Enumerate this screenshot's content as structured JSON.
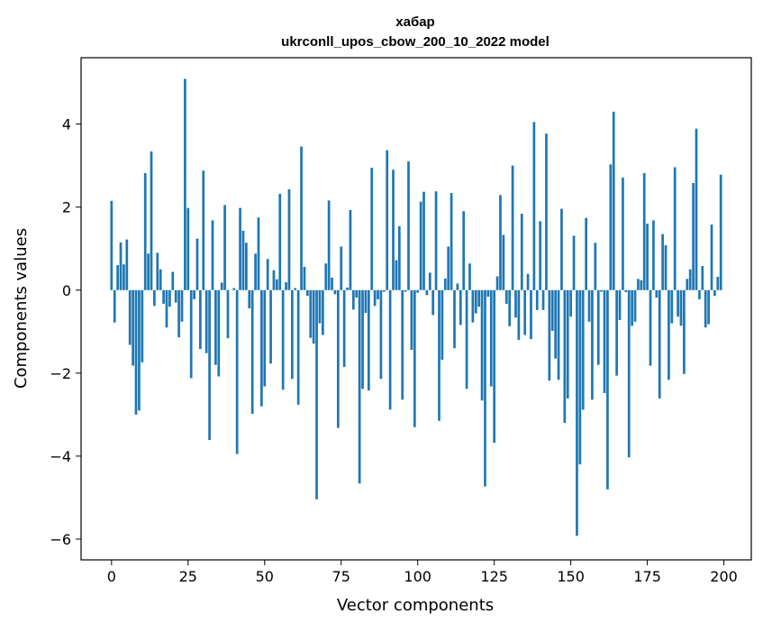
{
  "chart_data": {
    "type": "bar",
    "title": "хабар",
    "subtitle": "ukrconll_upos_cbow_200_10_2022 model",
    "xlabel": "Vector components",
    "ylabel": "Components values",
    "xlim": [
      -9.95,
      208.95
    ],
    "ylim": [
      -6.5,
      5.6
    ],
    "xticks": [
      0,
      25,
      50,
      75,
      100,
      125,
      150,
      175,
      200
    ],
    "yticks": [
      -6,
      -4,
      -2,
      0,
      2,
      4
    ],
    "xtick_labels": [
      "0",
      "25",
      "50",
      "75",
      "100",
      "125",
      "150",
      "175",
      "200"
    ],
    "ytick_labels": [
      "−6",
      "−4",
      "−2",
      "0",
      "2",
      "4"
    ],
    "bar_color": "#1f77b4",
    "grid": false,
    "legend": "none",
    "values": [
      2.15,
      -0.78,
      0.6,
      1.15,
      0.62,
      1.22,
      -1.32,
      -1.82,
      -3.0,
      -2.9,
      -1.74,
      2.82,
      0.88,
      3.34,
      -0.38,
      0.9,
      0.5,
      -0.33,
      -0.9,
      -0.4,
      0.44,
      -0.3,
      -1.14,
      -0.76,
      5.09,
      1.98,
      -2.12,
      -0.22,
      1.24,
      -1.42,
      2.88,
      -1.52,
      -3.61,
      1.68,
      -1.8,
      -2.08,
      0.18,
      2.05,
      -1.16,
      0.0,
      0.05,
      -3.95,
      1.98,
      1.43,
      1.14,
      -0.44,
      -2.98,
      0.88,
      1.75,
      -2.8,
      -2.32,
      0.75,
      -1.77,
      0.48,
      0.26,
      2.32,
      -2.4,
      0.19,
      2.43,
      -2.14,
      0.05,
      -2.76,
      3.46,
      0.56,
      -0.14,
      -1.15,
      -1.29,
      -5.04,
      -0.8,
      -1.08,
      0.64,
      2.16,
      0.3,
      -0.1,
      -3.32,
      1.05,
      -1.85,
      0.06,
      1.93,
      -0.47,
      -0.18,
      -4.66,
      -2.38,
      -0.55,
      -2.42,
      2.95,
      -0.38,
      -0.22,
      -2.14,
      -0.04,
      3.37,
      -2.88,
      2.9,
      0.72,
      1.54,
      -2.64,
      -0.04,
      3.1,
      -1.44,
      -3.3,
      -0.06,
      2.13,
      2.37,
      -0.12,
      0.42,
      -0.6,
      2.38,
      -3.15,
      -1.68,
      0.28,
      1.05,
      2.34,
      -1.4,
      0.16,
      -0.84,
      1.9,
      -2.38,
      0.64,
      -0.78,
      -0.56,
      -0.4,
      -2.66,
      -4.73,
      -0.16,
      -2.32,
      -3.68,
      0.33,
      2.29,
      1.33,
      -0.33,
      -0.87,
      3.0,
      -0.66,
      -1.2,
      1.84,
      -1.08,
      0.39,
      -1.18,
      4.05,
      -0.48,
      1.66,
      -0.48,
      3.77,
      -2.18,
      -0.98,
      -1.65,
      -2.16,
      1.96,
      -3.2,
      -2.61,
      -0.64,
      1.31,
      -5.92,
      -4.2,
      -2.88,
      1.74,
      -0.76,
      -2.64,
      1.14,
      -1.8,
      -0.04,
      -2.48,
      -4.8,
      3.03,
      4.3,
      -2.06,
      -0.72,
      2.71,
      -0.05,
      -4.03,
      -0.86,
      -0.76,
      0.27,
      0.24,
      2.82,
      1.6,
      -1.82,
      1.68,
      -0.18,
      -2.61,
      1.35,
      1.08,
      -2.16,
      -0.8,
      2.96,
      -0.64,
      -0.86,
      -2.02,
      0.27,
      0.5,
      2.58,
      3.89,
      -0.22,
      0.58,
      -0.9,
      -0.82,
      1.58,
      -0.14,
      0.32,
      2.78
    ]
  }
}
